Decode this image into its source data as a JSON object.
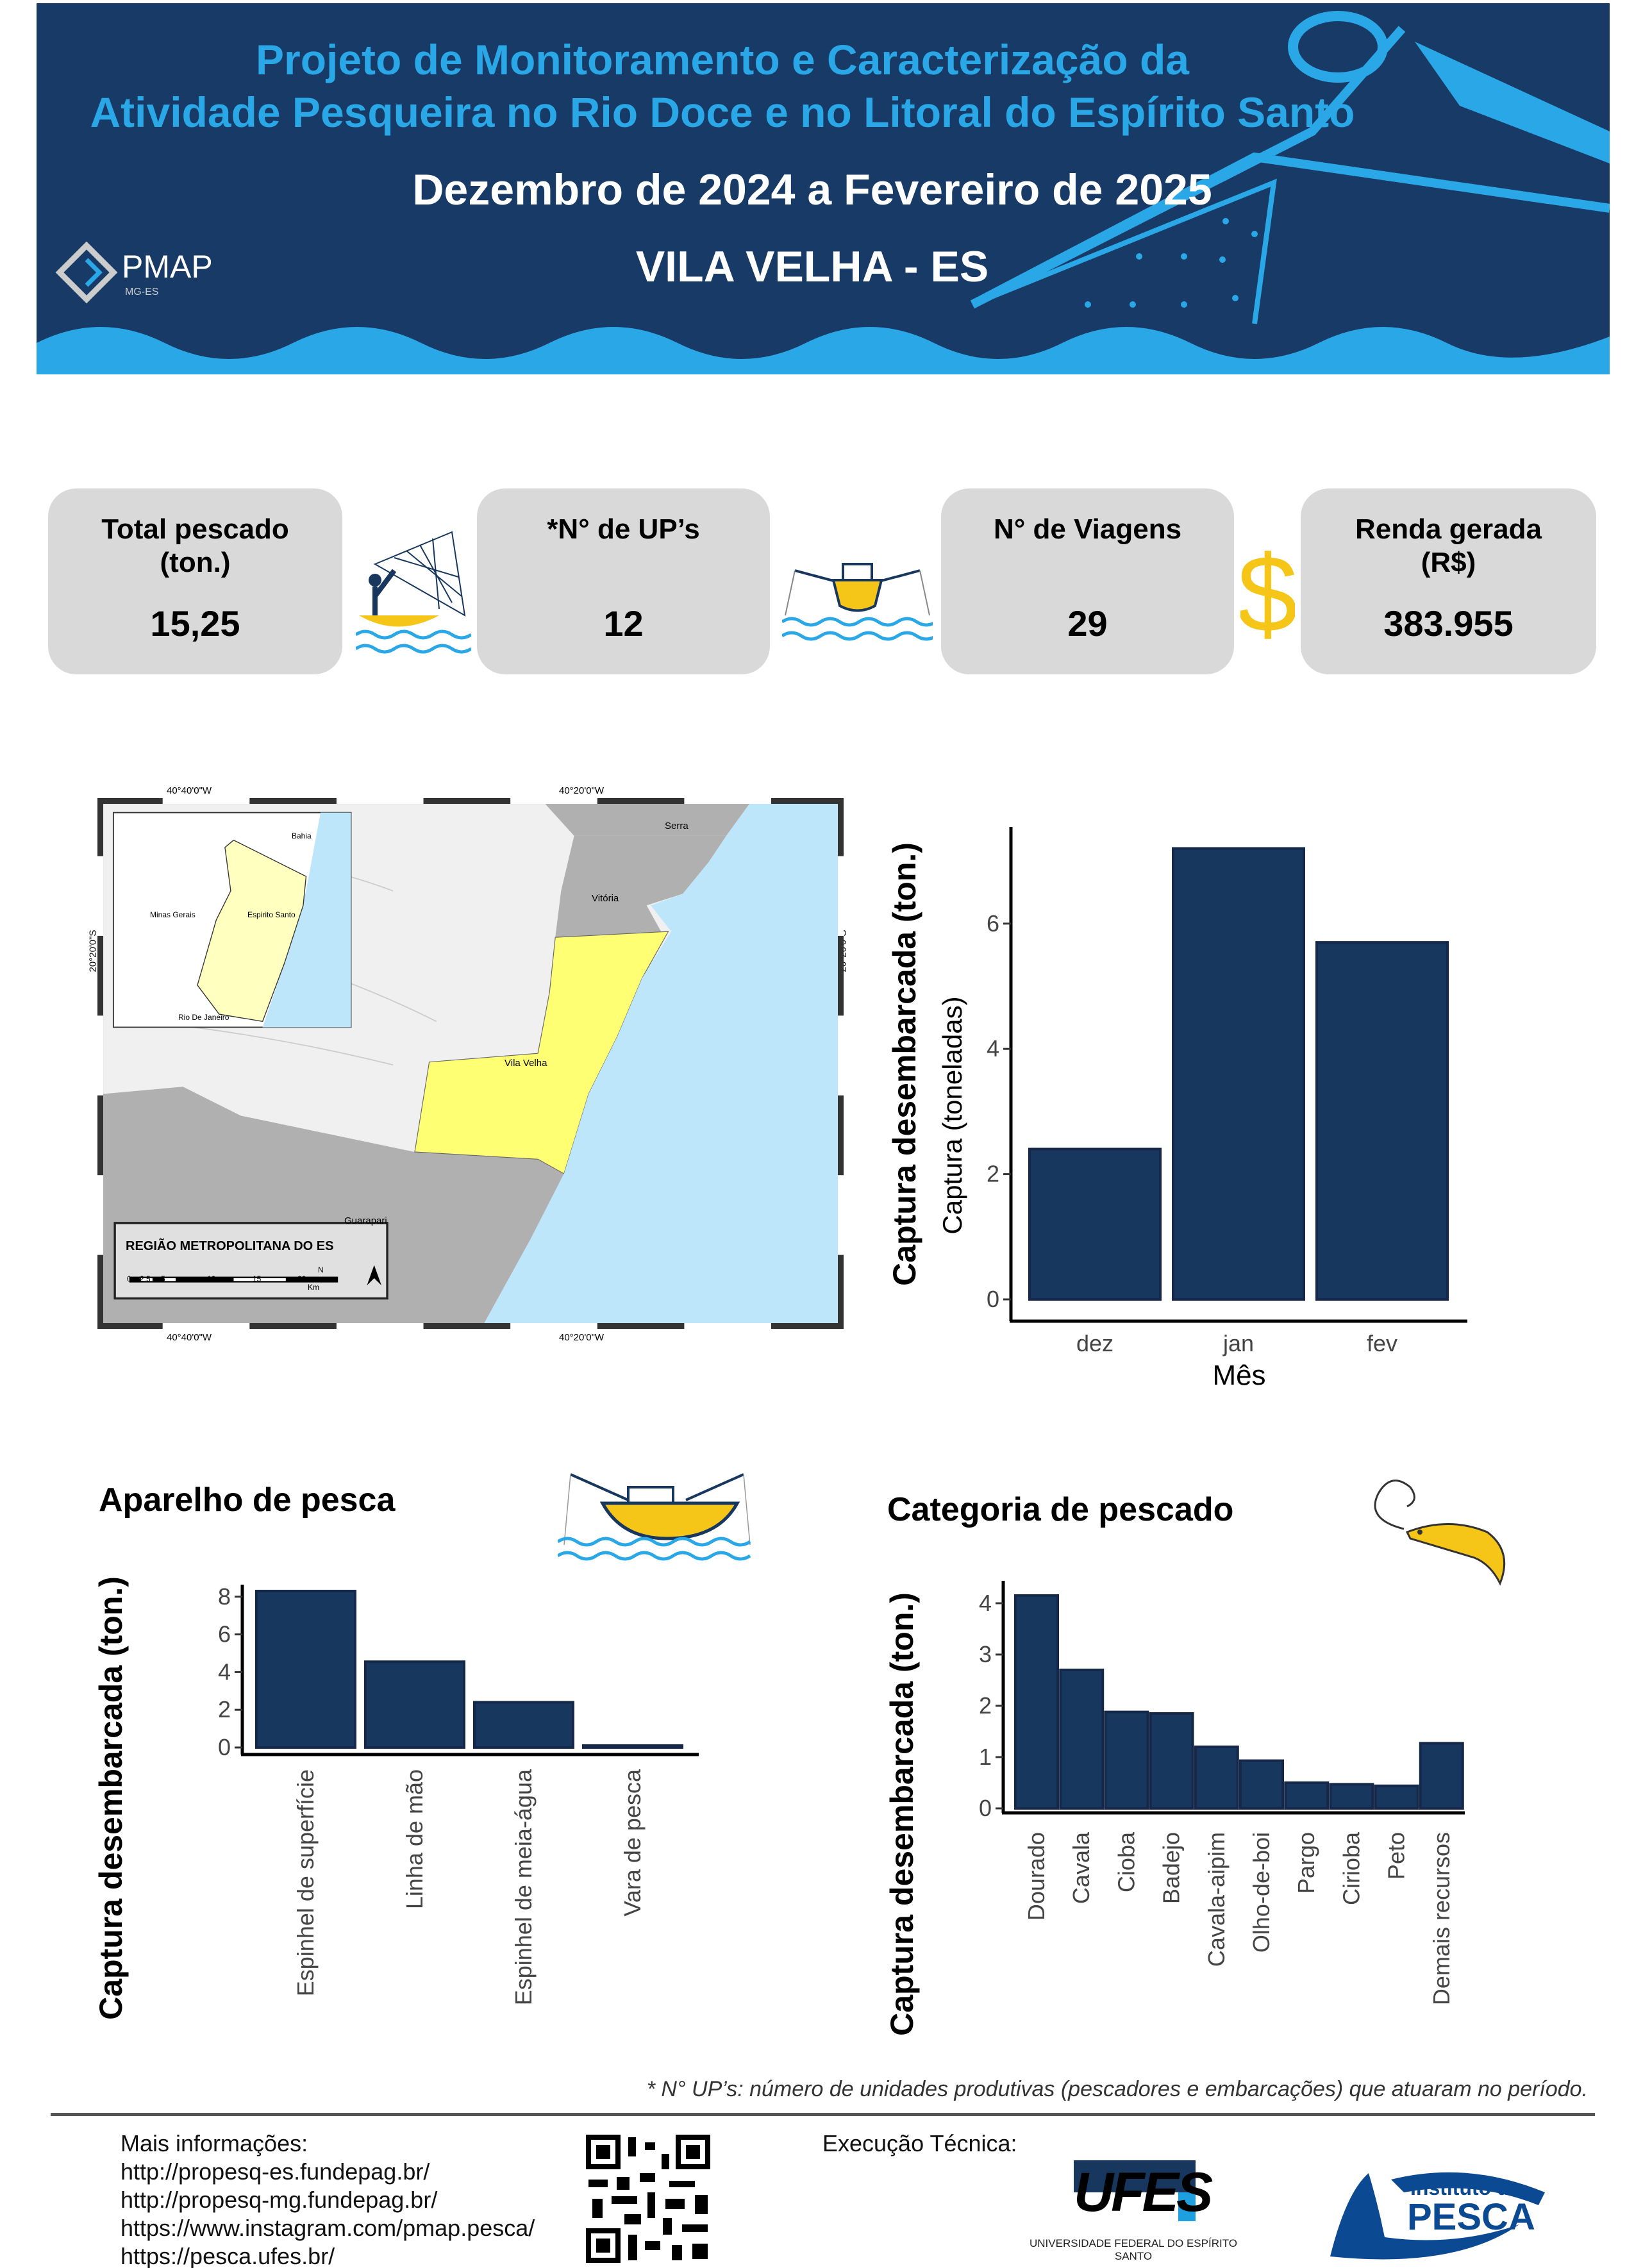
{
  "header": {
    "title_line1": "Projeto de Monitoramento e Caracterização da",
    "title_line2": "Atividade Pesqueira no Rio Doce e no Litoral do Espírito Santo",
    "period": "Dezembro de 2024 a Fevereiro de 2025",
    "location": "VILA VELHA - ES",
    "logo_text": "PMAP",
    "logo_sub": "MG-ES"
  },
  "stats": [
    {
      "label": "Total pescado (ton.)",
      "value": "15,25",
      "icon": "fisherman-net-icon"
    },
    {
      "label": "*N° de UP’s",
      "value": "12",
      "icon": "boat-icon"
    },
    {
      "label": "N°  de Viagens",
      "value": "29",
      "icon": "dollar-icon"
    },
    {
      "label": "Renda gerada (R$)",
      "value": "383.955"
    }
  ],
  "map": {
    "top_labels": [
      "40°40'0\"W",
      "40°20'0\"W"
    ],
    "side_label": "20°20'0\"S",
    "places": [
      "Serra",
      "Vitória",
      "Vila Velha",
      "Guarapari"
    ],
    "inset_places": [
      "Bahia",
      "Minas Gerais",
      "Espirito Santo",
      "Rio De Janeiro"
    ],
    "legend_title": "REGIÃO METROPOLITANA DO ES",
    "scale_ticks": [
      "0",
      "2,5",
      "5",
      "10",
      "15",
      "20"
    ],
    "scale_unit": "Km",
    "north": "N"
  },
  "chart_data": [
    {
      "type": "bar",
      "title": "Captura desembarcada (ton.)",
      "ylabel": "Captura (toneladas)",
      "xlabel": "Mês",
      "categories": [
        "dez",
        "jan",
        "fev"
      ],
      "values": [
        2.4,
        7.2,
        5.7
      ],
      "yticks": [
        "0",
        "2",
        "4",
        "6"
      ],
      "ylim": [
        0,
        7.5
      ],
      "grid": false
    },
    {
      "type": "bar",
      "section_title": "Aparelho de pesca",
      "ylabel": "Captura desembarcada (ton.)",
      "categories": [
        "Espinhel de superfície",
        "Linha de mão",
        "Espinhel de meia-água",
        "Vara de pesca"
      ],
      "values": [
        8.3,
        4.55,
        2.4,
        0.1
      ],
      "yticks": [
        "0",
        "2",
        "4",
        "6",
        "8"
      ],
      "ylim": [
        0,
        8.8
      ],
      "grid": false
    },
    {
      "type": "bar",
      "section_title": "Categoria de pescado",
      "ylabel": "Captura desembarcada (ton.)",
      "categories": [
        "Dourado",
        "Cavala",
        "Cioba",
        "Badejo",
        "Cavala-aipim",
        "Olho-de-boi",
        "Pargo",
        "Cirioba",
        "Peto",
        "Demais recursos"
      ],
      "values": [
        4.15,
        2.7,
        1.88,
        1.85,
        1.2,
        0.93,
        0.5,
        0.47,
        0.44,
        1.27
      ],
      "yticks": [
        "0",
        "1",
        "2",
        "3",
        "4"
      ],
      "ylim": [
        0,
        4.3
      ],
      "grid": false
    }
  ],
  "footnote": "* N° UP’s: número de unidades produtivas (pescadores e embarcações) que atuaram no período.",
  "footer": {
    "more_info_label": "Mais informações:",
    "links": [
      "http://propesq-es.fundepag.br/",
      "http://propesq-mg.fundepag.br/",
      "https://www.instagram.com/pmap.pesca/",
      "https://pesca.ufes.br/"
    ],
    "execution_label": "Execução Técnica:",
    "ufes_logo": "UFES",
    "ufes_name": "UNIVERSIDADE FEDERAL DO ESPÍRITO SANTO",
    "pesca_logo_line1": "Instituto de",
    "pesca_logo_line2": "PESCA"
  },
  "colors": {
    "navy": "#173a66",
    "bar": "#17375e",
    "accent": "#2aa7e6",
    "gold": "#f5c518",
    "box": "#d9d9d9"
  }
}
